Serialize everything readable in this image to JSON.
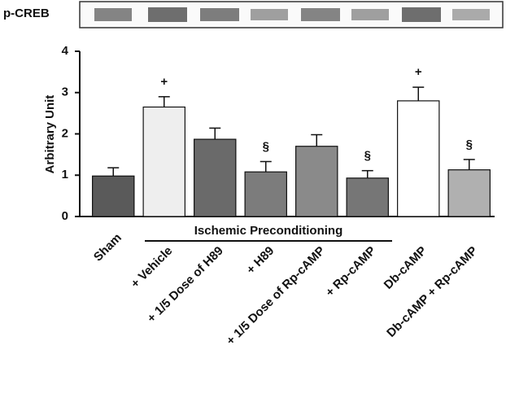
{
  "chart_data": {
    "type": "bar",
    "blot_label": "p-CREB",
    "y_label": "Arbitrary Unit",
    "group_label": "Ischemic Preconditioning",
    "categories": [
      "Sham",
      "+ Vehicle",
      "+ 1/5 Dose of H89",
      "+ H89",
      "+ 1/5 Dose of Rp-cAMP",
      "+ Rp-cAMP",
      "Db-cAMP",
      "Db-cAMP + Rp-cAMP"
    ],
    "values": [
      0.98,
      2.65,
      1.87,
      1.08,
      1.7,
      0.93,
      2.8,
      1.13
    ],
    "errors": [
      0.2,
      0.25,
      0.27,
      0.25,
      0.28,
      0.18,
      0.33,
      0.25
    ],
    "colors": [
      "#5a5a5a",
      "#eeeeee",
      "#6a6a6a",
      "#7c7c7c",
      "#8a8a8a",
      "#767676",
      "#ffffff",
      "#b0b0b0"
    ],
    "markers": [
      null,
      "+",
      null,
      "§",
      null,
      "§",
      "+",
      "§"
    ],
    "ylim": [
      0,
      4
    ],
    "yticks": [
      0,
      1,
      2,
      3,
      4
    ]
  }
}
